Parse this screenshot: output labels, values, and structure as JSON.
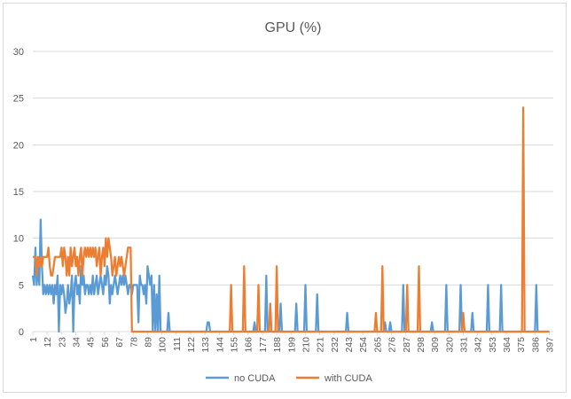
{
  "chart_data": {
    "type": "line",
    "title": "GPU (%)",
    "xlabel": "",
    "ylabel": "",
    "ylim": [
      0,
      30
    ],
    "yticks": [
      0,
      5,
      10,
      15,
      20,
      25,
      30
    ],
    "xlim": [
      1,
      400
    ],
    "xtick_start": 1,
    "xtick_step": 11,
    "xtick_end": 397,
    "grid": "horizontal",
    "legend": "bottom",
    "series": [
      {
        "name": "no CUDA",
        "color": "#5b9bd5",
        "points": [
          [
            1,
            6
          ],
          [
            2,
            5
          ],
          [
            3,
            9
          ],
          [
            4,
            5
          ],
          [
            5,
            7
          ],
          [
            6,
            5
          ],
          [
            7,
            12
          ],
          [
            8,
            7
          ],
          [
            9,
            4
          ],
          [
            10,
            5
          ],
          [
            11,
            4
          ],
          [
            12,
            5
          ],
          [
            13,
            4
          ],
          [
            14,
            5
          ],
          [
            15,
            4
          ],
          [
            16,
            5
          ],
          [
            17,
            3
          ],
          [
            18,
            5
          ],
          [
            19,
            4
          ],
          [
            20,
            6
          ],
          [
            21,
            0
          ],
          [
            22,
            5
          ],
          [
            23,
            4
          ],
          [
            24,
            5
          ],
          [
            25,
            4
          ],
          [
            26,
            2
          ],
          [
            27,
            3
          ],
          [
            28,
            5
          ],
          [
            29,
            3
          ],
          [
            30,
            4
          ],
          [
            31,
            6
          ],
          [
            32,
            0
          ],
          [
            33,
            5
          ],
          [
            34,
            6
          ],
          [
            35,
            4
          ],
          [
            36,
            5
          ],
          [
            37,
            3
          ],
          [
            38,
            7
          ],
          [
            39,
            5
          ],
          [
            40,
            6
          ],
          [
            41,
            4
          ],
          [
            42,
            5
          ],
          [
            43,
            5
          ],
          [
            44,
            4
          ],
          [
            45,
            5
          ],
          [
            46,
            4
          ],
          [
            47,
            6
          ],
          [
            48,
            4
          ],
          [
            49,
            5
          ],
          [
            50,
            6
          ],
          [
            51,
            4
          ],
          [
            52,
            5
          ],
          [
            53,
            6
          ],
          [
            54,
            5
          ],
          [
            55,
            4
          ],
          [
            56,
            6
          ],
          [
            57,
            5
          ],
          [
            58,
            7
          ],
          [
            59,
            6
          ],
          [
            60,
            3
          ],
          [
            61,
            5
          ],
          [
            62,
            4
          ],
          [
            63,
            5
          ],
          [
            64,
            6
          ],
          [
            65,
            5
          ],
          [
            66,
            4
          ],
          [
            67,
            5
          ],
          [
            68,
            6
          ],
          [
            69,
            5
          ],
          [
            70,
            6
          ],
          [
            71,
            5
          ],
          [
            72,
            6
          ],
          [
            73,
            5
          ],
          [
            74,
            4
          ],
          [
            75,
            5
          ],
          [
            76,
            5
          ],
          [
            77,
            4
          ],
          [
            78,
            5
          ],
          [
            79,
            5
          ],
          [
            80,
            5
          ],
          [
            81,
            5
          ],
          [
            82,
            1
          ],
          [
            83,
            6
          ],
          [
            84,
            5
          ],
          [
            85,
            5
          ],
          [
            86,
            4
          ],
          [
            87,
            5
          ],
          [
            88,
            3
          ],
          [
            89,
            7
          ],
          [
            90,
            6
          ],
          [
            91,
            5
          ],
          [
            92,
            6
          ],
          [
            93,
            0
          ],
          [
            94,
            5
          ],
          [
            95,
            0
          ],
          [
            96,
            4
          ],
          [
            97,
            0
          ],
          [
            98,
            6
          ],
          [
            99,
            0
          ],
          [
            100,
            0
          ],
          [
            104,
            0
          ],
          [
            105,
            2
          ],
          [
            106,
            0
          ],
          [
            134,
            0
          ],
          [
            135,
            1
          ],
          [
            136,
            1
          ],
          [
            137,
            0
          ],
          [
            170,
            0
          ],
          [
            171,
            1
          ],
          [
            172,
            0
          ],
          [
            179,
            0
          ],
          [
            180,
            6
          ],
          [
            181,
            0
          ],
          [
            190,
            0
          ],
          [
            191,
            3
          ],
          [
            192,
            0
          ],
          [
            202,
            0
          ],
          [
            203,
            3
          ],
          [
            204,
            0
          ],
          [
            209,
            0
          ],
          [
            210,
            5
          ],
          [
            211,
            0
          ],
          [
            218,
            0
          ],
          [
            219,
            4
          ],
          [
            220,
            0
          ],
          [
            241,
            0
          ],
          [
            242,
            2
          ],
          [
            243,
            0
          ],
          [
            270,
            0
          ],
          [
            271,
            1
          ],
          [
            272,
            0
          ],
          [
            274,
            0
          ],
          [
            275,
            1
          ],
          [
            276,
            0
          ],
          [
            284,
            0
          ],
          [
            285,
            5
          ],
          [
            286,
            0
          ],
          [
            306,
            0
          ],
          [
            307,
            1
          ],
          [
            308,
            0
          ],
          [
            317,
            0
          ],
          [
            318,
            5
          ],
          [
            319,
            0
          ],
          [
            328,
            0
          ],
          [
            329,
            5
          ],
          [
            330,
            0
          ],
          [
            337,
            0
          ],
          [
            338,
            2
          ],
          [
            339,
            0
          ],
          [
            349,
            0
          ],
          [
            350,
            5
          ],
          [
            351,
            0
          ],
          [
            359,
            0
          ],
          [
            360,
            5
          ],
          [
            361,
            0
          ],
          [
            386,
            0
          ],
          [
            387,
            5
          ],
          [
            388,
            0
          ],
          [
            397,
            0
          ]
        ]
      },
      {
        "name": "with CUDA",
        "color": "#ed7d31",
        "points": [
          [
            1,
            8
          ],
          [
            2,
            8
          ],
          [
            3,
            8
          ],
          [
            4,
            6
          ],
          [
            5,
            8
          ],
          [
            6,
            7
          ],
          [
            7,
            8
          ],
          [
            8,
            7
          ],
          [
            9,
            8
          ],
          [
            10,
            8
          ],
          [
            11,
            8
          ],
          [
            12,
            8
          ],
          [
            13,
            9
          ],
          [
            14,
            7
          ],
          [
            15,
            6
          ],
          [
            16,
            6
          ],
          [
            17,
            7
          ],
          [
            18,
            8
          ],
          [
            19,
            8
          ],
          [
            20,
            8
          ],
          [
            21,
            8
          ],
          [
            22,
            8
          ],
          [
            23,
            9
          ],
          [
            24,
            7
          ],
          [
            25,
            9
          ],
          [
            26,
            8
          ],
          [
            27,
            6
          ],
          [
            28,
            8
          ],
          [
            29,
            6
          ],
          [
            30,
            9
          ],
          [
            31,
            7
          ],
          [
            32,
            8
          ],
          [
            33,
            9
          ],
          [
            34,
            7
          ],
          [
            35,
            8
          ],
          [
            36,
            6
          ],
          [
            37,
            8
          ],
          [
            38,
            9
          ],
          [
            39,
            6
          ],
          [
            40,
            8
          ],
          [
            41,
            9
          ],
          [
            42,
            8
          ],
          [
            43,
            9
          ],
          [
            44,
            8
          ],
          [
            45,
            9
          ],
          [
            46,
            8
          ],
          [
            47,
            9
          ],
          [
            48,
            8
          ],
          [
            49,
            9
          ],
          [
            50,
            7
          ],
          [
            51,
            8
          ],
          [
            52,
            9
          ],
          [
            53,
            6
          ],
          [
            54,
            8
          ],
          [
            55,
            9
          ],
          [
            56,
            7
          ],
          [
            57,
            10
          ],
          [
            58,
            8
          ],
          [
            59,
            10
          ],
          [
            60,
            9
          ],
          [
            61,
            8
          ],
          [
            62,
            6
          ],
          [
            63,
            7
          ],
          [
            64,
            8
          ],
          [
            65,
            6
          ],
          [
            66,
            7
          ],
          [
            67,
            8
          ],
          [
            68,
            7
          ],
          [
            69,
            8
          ],
          [
            70,
            7
          ],
          [
            71,
            6
          ],
          [
            72,
            7
          ],
          [
            73,
            8
          ],
          [
            74,
            9
          ],
          [
            75,
            9
          ],
          [
            76,
            9
          ],
          [
            77,
            0
          ],
          [
            152,
            0
          ],
          [
            153,
            5
          ],
          [
            154,
            0
          ],
          [
            162,
            0
          ],
          [
            163,
            7
          ],
          [
            164,
            0
          ],
          [
            173,
            0
          ],
          [
            174,
            5
          ],
          [
            175,
            0
          ],
          [
            182,
            0
          ],
          [
            183,
            3
          ],
          [
            184,
            0
          ],
          [
            187,
            0
          ],
          [
            188,
            7
          ],
          [
            189,
            0
          ],
          [
            263,
            0
          ],
          [
            264,
            2
          ],
          [
            265,
            0
          ],
          [
            268,
            0
          ],
          [
            269,
            7
          ],
          [
            270,
            0
          ],
          [
            287,
            0
          ],
          [
            288,
            5
          ],
          [
            289,
            0
          ],
          [
            296,
            0
          ],
          [
            297,
            7
          ],
          [
            298,
            0
          ],
          [
            330,
            0
          ],
          [
            331,
            2
          ],
          [
            332,
            0
          ],
          [
            376,
            0
          ],
          [
            377,
            24
          ],
          [
            378,
            0
          ],
          [
            397,
            0
          ]
        ]
      }
    ]
  }
}
